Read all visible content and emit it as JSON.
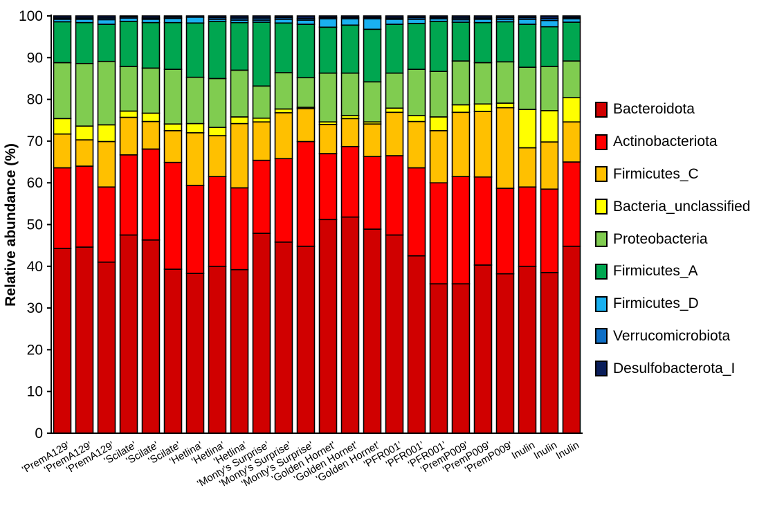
{
  "chart_data": {
    "type": "stacked-bar",
    "title": "",
    "xlabel": "",
    "ylabel": "Relative abundance (%)",
    "ylim": [
      0,
      100
    ],
    "yticks": [
      0,
      10,
      20,
      30,
      40,
      50,
      60,
      70,
      80,
      90,
      100
    ],
    "grid": false,
    "legend_position": "right",
    "categories": [
      "'PremA129'",
      "'PremA129'",
      "'PremA129'",
      "'Scilate'",
      "'Scilate'",
      "'Scilate'",
      "'Hetlina'",
      "'Hetlina'",
      "'Hetlina'",
      "'Monty's Surprise'",
      "'Monty's Surprise'",
      "'Monty's Surprise'",
      "'Golden Hornet'",
      "'Golden Hornet'",
      "'Golden Hornet'",
      "'PFR001'",
      "'PFR001'",
      "'PFR001'",
      "'PremP009'",
      "'PremP009'",
      "'PremP009'",
      "Inulin",
      "Inulin",
      "Inulin"
    ],
    "series": [
      {
        "name": "Bacteroidota",
        "color": "#d00000",
        "values": [
          44.3,
          44.6,
          41.0,
          47.5,
          46.3,
          39.3,
          38.3,
          40.0,
          39.2,
          47.9,
          45.8,
          44.8,
          51.2,
          51.8,
          48.9,
          47.5,
          42.5,
          35.8,
          35.8,
          40.3,
          38.2,
          40.0,
          38.5,
          44.8
        ]
      },
      {
        "name": "Actinobacteriota",
        "color": "#ff0000",
        "values": [
          19.3,
          19.4,
          18.0,
          19.2,
          21.8,
          25.6,
          21.1,
          21.5,
          19.6,
          17.5,
          20.0,
          25.1,
          15.8,
          16.9,
          17.4,
          19.0,
          21.1,
          24.2,
          25.7,
          21.1,
          20.5,
          19.0,
          20.0,
          20.2
        ]
      },
      {
        "name": "Firmicutes_C",
        "color": "#ffc000",
        "values": [
          8.1,
          6.3,
          10.9,
          9.0,
          6.6,
          7.6,
          12.6,
          9.8,
          15.4,
          9.2,
          11.0,
          7.9,
          7.0,
          6.7,
          7.8,
          10.4,
          11.1,
          12.5,
          15.4,
          15.7,
          19.3,
          9.4,
          11.3,
          9.6
        ]
      },
      {
        "name": "Bacteria_unclassified",
        "color": "#ffff00",
        "values": [
          3.7,
          3.3,
          4.0,
          1.5,
          2.0,
          1.6,
          2.2,
          2.0,
          1.6,
          0.9,
          0.9,
          0.3,
          0.6,
          0.7,
          0.5,
          1.0,
          1.4,
          3.3,
          1.8,
          1.8,
          1.1,
          9.2,
          7.5,
          5.8
        ]
      },
      {
        "name": "Proteobacteria",
        "color": "#80cc50",
        "values": [
          13.4,
          15.0,
          15.2,
          10.7,
          10.8,
          13.1,
          11.1,
          11.7,
          11.2,
          7.7,
          8.7,
          7.1,
          11.7,
          10.2,
          9.6,
          8.4,
          11.1,
          10.9,
          10.5,
          9.9,
          9.9,
          10.1,
          10.6,
          8.8
        ]
      },
      {
        "name": "Firmicutes_A",
        "color": "#00a650",
        "values": [
          9.8,
          9.8,
          8.9,
          10.8,
          10.9,
          11.2,
          13.0,
          13.7,
          11.4,
          15.3,
          11.9,
          12.8,
          11.0,
          11.5,
          12.6,
          11.7,
          11.0,
          12.0,
          9.3,
          9.6,
          9.6,
          10.3,
          9.5,
          9.3
        ]
      },
      {
        "name": "Firmicutes_D",
        "color": "#1ab0f0",
        "values": [
          0.6,
          0.8,
          1.1,
          0.8,
          0.8,
          1.0,
          1.4,
          0.5,
          0.6,
          0.5,
          0.9,
          1.0,
          2.0,
          1.5,
          2.5,
          1.2,
          1.0,
          0.6,
          0.6,
          0.8,
          0.6,
          1.2,
          1.5,
          0.8
        ]
      },
      {
        "name": "Verrucomicrobiota",
        "color": "#0f6fc6",
        "values": [
          0.3,
          0.3,
          0.4,
          0.3,
          0.3,
          0.3,
          0.3,
          0.4,
          0.5,
          0.5,
          0.4,
          0.4,
          0.3,
          0.3,
          0.3,
          0.3,
          0.4,
          0.3,
          0.4,
          0.3,
          0.4,
          0.4,
          0.5,
          0.3
        ]
      },
      {
        "name": "Desulfobacterota_I",
        "color": "#0a1e5a",
        "values": [
          0.5,
          0.5,
          0.5,
          0.2,
          0.5,
          0.3,
          0.0,
          0.4,
          0.5,
          0.5,
          0.4,
          0.6,
          0.4,
          0.4,
          0.4,
          0.5,
          0.4,
          0.4,
          0.5,
          0.5,
          0.4,
          0.4,
          0.6,
          0.4
        ]
      }
    ]
  }
}
